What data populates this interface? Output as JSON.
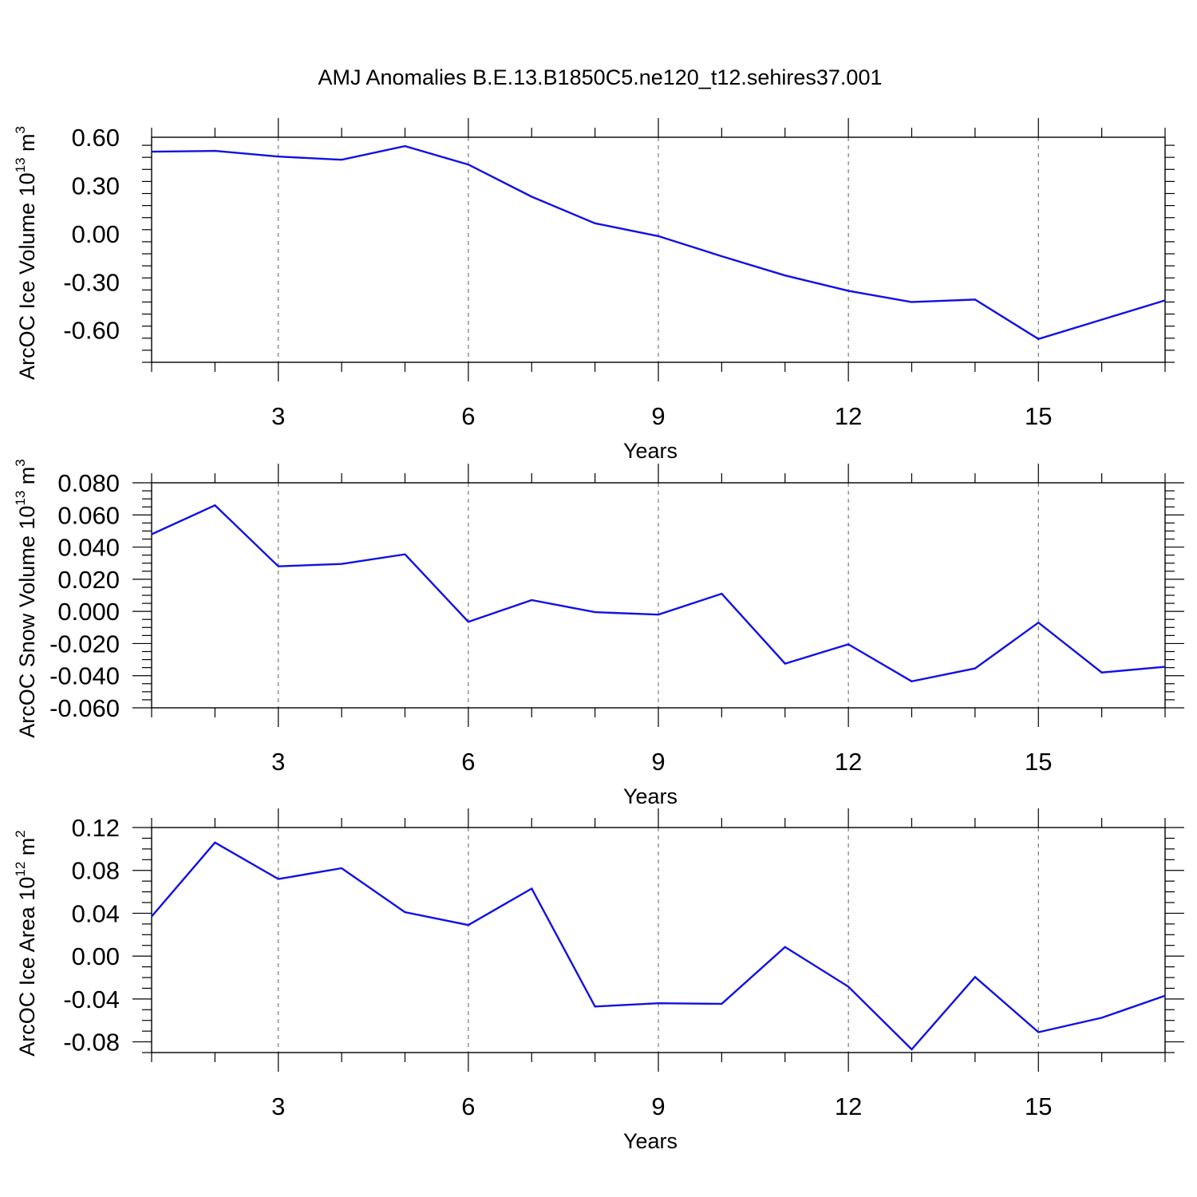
{
  "figure": {
    "title": "AMJ Anomalies B.E.13.B1850C5.ne120_t12.sehires37.001"
  },
  "chart_data": [
    {
      "type": "line",
      "xlabel": "Years",
      "ylabel": {
        "text": "ArcOC Ice Volume 10",
        "sup1": "13",
        "mid": " m",
        "sup2": "3"
      },
      "xlim": [
        1,
        17
      ],
      "ylim": [
        -0.8,
        0.6
      ],
      "xticks": [
        3,
        6,
        9,
        12,
        15
      ],
      "xtick_labels": [
        "3",
        "6",
        "9",
        "12",
        "15"
      ],
      "yticks": [
        0.6,
        0.3,
        0.0,
        -0.3,
        -0.6
      ],
      "ytick_labels": [
        "0.60",
        "0.30",
        "0.00",
        "-0.30",
        "-0.60"
      ],
      "grid": "vertical dashed at x ticks",
      "color": "#1010e6",
      "x": [
        1,
        2,
        3,
        4,
        5,
        6,
        7,
        8,
        9,
        10,
        11,
        12,
        13,
        14,
        15,
        16,
        17
      ],
      "y": [
        0.51,
        0.515,
        0.48,
        0.46,
        0.545,
        0.43,
        0.23,
        0.065,
        -0.015,
        -0.14,
        -0.26,
        -0.355,
        -0.425,
        -0.41,
        -0.655,
        -0.535,
        -0.415
      ]
    },
    {
      "type": "line",
      "xlabel": "Years",
      "ylabel": {
        "text": "ArcOC Snow Volume 10",
        "sup1": "13",
        "mid": " m",
        "sup2": "3"
      },
      "xlim": [
        1,
        17
      ],
      "ylim": [
        -0.06,
        0.08
      ],
      "xticks": [
        3,
        6,
        9,
        12,
        15
      ],
      "xtick_labels": [
        "3",
        "6",
        "9",
        "12",
        "15"
      ],
      "yticks": [
        0.08,
        0.06,
        0.04,
        0.02,
        0.0,
        -0.02,
        -0.04,
        -0.06
      ],
      "ytick_labels": [
        "0.080",
        "0.060",
        "0.040",
        "0.020",
        "0.000",
        "-0.020",
        "-0.040",
        "-0.060"
      ],
      "grid": "vertical dashed at x ticks",
      "color": "#1010e6",
      "x": [
        1,
        2,
        3,
        4,
        5,
        6,
        7,
        8,
        9,
        10,
        11,
        12,
        13,
        14,
        15,
        16,
        17
      ],
      "y": [
        0.048,
        0.066,
        0.028,
        0.0295,
        0.0355,
        -0.0065,
        0.007,
        -0.0005,
        -0.002,
        0.011,
        -0.0325,
        -0.0205,
        -0.0435,
        -0.0355,
        -0.007,
        -0.038,
        -0.0345
      ]
    },
    {
      "type": "line",
      "xlabel": "Years",
      "ylabel": {
        "text": "ArcOC Ice Area 10",
        "sup1": "12",
        "mid": " m",
        "sup2": "2"
      },
      "xlim": [
        1,
        17
      ],
      "ylim": [
        -0.09,
        0.12
      ],
      "xticks": [
        3,
        6,
        9,
        12,
        15
      ],
      "xtick_labels": [
        "3",
        "6",
        "9",
        "12",
        "15"
      ],
      "yticks": [
        0.12,
        0.08,
        0.04,
        0.0,
        -0.04,
        -0.08
      ],
      "ytick_labels": [
        "0.12",
        "0.08",
        "0.04",
        "0.00",
        "-0.04",
        "-0.08"
      ],
      "grid": "vertical dashed at x ticks",
      "color": "#1010e6",
      "x": [
        1,
        2,
        3,
        4,
        5,
        6,
        7,
        8,
        9,
        10,
        11,
        12,
        13,
        14,
        15,
        16,
        17
      ],
      "y": [
        0.037,
        0.106,
        0.072,
        0.082,
        0.041,
        0.029,
        0.063,
        -0.047,
        -0.044,
        -0.0445,
        0.0085,
        -0.0285,
        -0.087,
        -0.0195,
        -0.071,
        -0.0575,
        -0.037
      ]
    }
  ]
}
